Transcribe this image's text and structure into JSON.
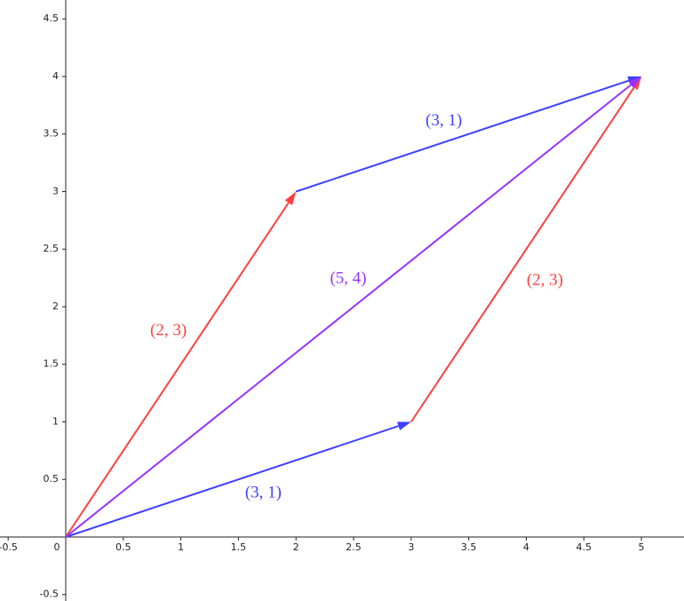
{
  "chart_data": {
    "type": "vector",
    "xlim": [
      -0.571,
      5.37
    ],
    "ylim": [
      -0.556,
      4.664
    ],
    "xticks": [
      -0.5,
      0,
      0.5,
      1,
      1.5,
      2,
      2.5,
      3,
      3.5,
      4,
      4.5,
      5
    ],
    "yticks": [
      -0.5,
      0.5,
      1,
      1.5,
      2,
      2.5,
      3,
      3.5,
      4,
      4.5
    ],
    "series": [
      {
        "name": "(3, 1)",
        "color": "#4040ff",
        "x": [
          0,
          3
        ],
        "y": [
          0,
          1
        ]
      },
      {
        "name": "(2, 3)",
        "color": "#ff4040",
        "x": [
          3,
          5
        ],
        "y": [
          1,
          4
        ]
      },
      {
        "name": "(2, 3)",
        "color": "#ff4040",
        "x": [
          0,
          2
        ],
        "y": [
          0,
          3
        ]
      },
      {
        "name": "(3, 1)",
        "color": "#4040ff",
        "x": [
          2,
          5
        ],
        "y": [
          3,
          4
        ]
      },
      {
        "name": "(5, 4)",
        "color": "#9933ff",
        "x": [
          0,
          5
        ],
        "y": [
          0,
          4
        ]
      }
    ]
  }
}
